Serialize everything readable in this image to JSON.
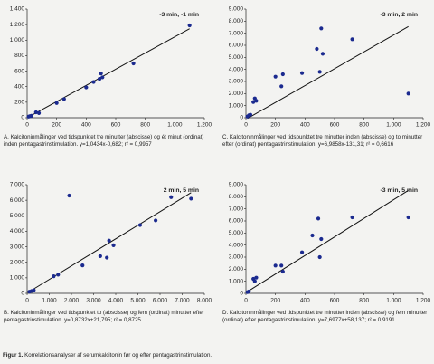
{
  "chart_data": [
    {
      "type": "scatter",
      "annotation": "-3 min, -1 min",
      "x": [
        10,
        20,
        30,
        60,
        80,
        200,
        250,
        400,
        450,
        490,
        500,
        510,
        720,
        1100
      ],
      "y": [
        15,
        20,
        25,
        70,
        60,
        190,
        240,
        390,
        460,
        500,
        570,
        520,
        700,
        1190
      ],
      "color": "#1b2a8f",
      "fit": {
        "slope": 1.0434,
        "intercept": -0.682
      },
      "xlim": [
        0,
        1200
      ],
      "xticks": [
        0,
        200,
        400,
        600,
        800,
        {
          "value": 1000,
          "label": "1.000"
        },
        {
          "value": 1200,
          "label": "1.200"
        }
      ],
      "ylim": [
        0,
        1400
      ],
      "yticks": [
        0,
        200,
        400,
        600,
        800,
        {
          "value": 1000,
          "label": "1.000"
        },
        {
          "value": 1200,
          "label": "1.200"
        },
        {
          "value": 1400,
          "label": "1.400"
        }
      ],
      "caption": "A. Kalcitoninmålinger ved tidspunktet tre minutter (abscisse) og ét minut (ordinat) inden pentagastrinstimulation. y=1,0434x-0,682; r² = 0,9957"
    },
    {
      "type": "scatter",
      "annotation": "-3 min, 2 min",
      "x": [
        10,
        20,
        30,
        50,
        60,
        70,
        200,
        240,
        250,
        380,
        480,
        500,
        510,
        520,
        720,
        1100
      ],
      "y": [
        100,
        200,
        250,
        1300,
        1600,
        1400,
        3400,
        2600,
        3600,
        3700,
        5700,
        3800,
        7400,
        5300,
        6500,
        2000
      ],
      "color": "#1b2a8f",
      "fit": {
        "slope": 6.9858,
        "intercept": -131.31
      },
      "xlim": [
        0,
        1200
      ],
      "xticks": [
        0,
        200,
        400,
        600,
        800,
        {
          "value": 1000,
          "label": "1.000"
        },
        {
          "value": 1200,
          "label": "1.200"
        }
      ],
      "ylim": [
        0,
        9000
      ],
      "yticks": [
        0,
        {
          "value": 1000,
          "label": "1.000"
        },
        {
          "value": 2000,
          "label": "2.000"
        },
        {
          "value": 3000,
          "label": "3.000"
        },
        {
          "value": 4000,
          "label": "4.000"
        },
        {
          "value": 5000,
          "label": "5.000"
        },
        {
          "value": 6000,
          "label": "6.000"
        },
        {
          "value": 7000,
          "label": "7.000"
        },
        {
          "value": 8000,
          "label": "8.000"
        },
        {
          "value": 9000,
          "label": "9.000"
        }
      ],
      "caption": "C. Kalcitoninmålinger ved tidspunktet tre minutter inden (abscisse) og to minutter efter (ordinat) pentagastrinstimulation. y=6,9858x-131,31; r² = 0,6616"
    },
    {
      "type": "scatter",
      "annotation": "2 min, 5 min",
      "x": [
        100,
        200,
        300,
        1200,
        1400,
        1900,
        2500,
        3300,
        3600,
        3700,
        3900,
        5100,
        5800,
        6500,
        7400
      ],
      "y": [
        100,
        150,
        200,
        1100,
        1200,
        6300,
        1800,
        2400,
        2300,
        3400,
        3100,
        4400,
        4700,
        6200,
        6100
      ],
      "color": "#1b2a8f",
      "fit": {
        "slope": 0.8732,
        "intercept": 21.795
      },
      "xlim": [
        0,
        8000
      ],
      "xticks": [
        0,
        {
          "value": 1000,
          "label": "1.000"
        },
        {
          "value": 2000,
          "label": "2.000"
        },
        {
          "value": 3000,
          "label": "3.000"
        },
        {
          "value": 4000,
          "label": "4.000"
        },
        {
          "value": 5000,
          "label": "5.000"
        },
        {
          "value": 6000,
          "label": "6.000"
        },
        {
          "value": 7000,
          "label": "7.000"
        },
        {
          "value": 8000,
          "label": "8.000"
        }
      ],
      "ylim": [
        0,
        7000
      ],
      "yticks": [
        0,
        {
          "value": 1000,
          "label": "1.000"
        },
        {
          "value": 2000,
          "label": "2.000"
        },
        {
          "value": 3000,
          "label": "3.000"
        },
        {
          "value": 4000,
          "label": "4.000"
        },
        {
          "value": 5000,
          "label": "5.000"
        },
        {
          "value": 6000,
          "label": "6.000"
        },
        {
          "value": 7000,
          "label": "7.000"
        }
      ],
      "caption": "B. Kalcitoninmålinger ved tidspunktet to (abscisse) og fem (ordinat) minutter efter pentagastrinstimulation. y=0,8732x+21,795; r² = 0,8725"
    },
    {
      "type": "scatter",
      "annotation": "-3 min, 5 min",
      "x": [
        10,
        20,
        50,
        60,
        70,
        200,
        240,
        250,
        380,
        450,
        490,
        500,
        510,
        720,
        1100
      ],
      "y": [
        100,
        150,
        1200,
        1000,
        1300,
        2300,
        2300,
        1800,
        3400,
        4800,
        6200,
        3000,
        4500,
        6300,
        6300
      ],
      "color": "#1b2a8f",
      "fit": {
        "slope": 7.6977,
        "intercept": 58.137
      },
      "xlim": [
        0,
        1200
      ],
      "xticks": [
        0,
        200,
        400,
        600,
        800,
        {
          "value": 1000,
          "label": "1.000"
        },
        {
          "value": 1200,
          "label": "1.200"
        }
      ],
      "ylim": [
        0,
        9000
      ],
      "yticks": [
        0,
        {
          "value": 1000,
          "label": "1.000"
        },
        {
          "value": 2000,
          "label": "2.000"
        },
        {
          "value": 3000,
          "label": "3.000"
        },
        {
          "value": 4000,
          "label": "4.000"
        },
        {
          "value": 5000,
          "label": "5.000"
        },
        {
          "value": 6000,
          "label": "6.000"
        },
        {
          "value": 7000,
          "label": "7.000"
        },
        {
          "value": 8000,
          "label": "8.000"
        },
        {
          "value": 9000,
          "label": "9.000"
        }
      ],
      "caption": "D. Kalcitoninmålinger ved tidspunktet tre minutter inden (abscisse) og fem minutter (ordinat) efter pentagastrinstimulation. y=7,6977x+58,137; r² = 0,9191"
    }
  ],
  "figure_caption": {
    "label": "Figur 1.",
    "text": "Korrelationsanalyser af serumkalcitonin før og efter pentagastrinstimulation."
  }
}
